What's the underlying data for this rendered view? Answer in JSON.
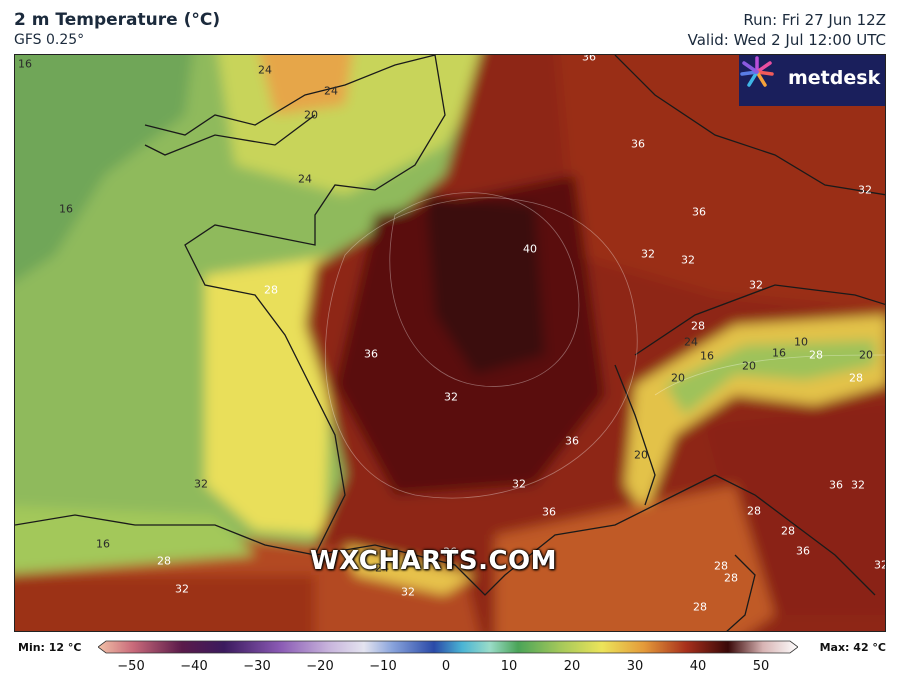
{
  "header": {
    "title": "2 m Temperature (°C)",
    "model": "GFS 0.25°",
    "run": "Run: Fri 27 Jun 12Z",
    "valid": "Valid: Wed 2 Jul 12:00 UTC"
  },
  "logo": {
    "text": "metdesk"
  },
  "watermark": "WXCHARTS.COM",
  "map_labels": [
    {
      "id": "l1",
      "text": "16"
    },
    {
      "id": "l2",
      "text": "24"
    },
    {
      "id": "l3",
      "text": "24"
    },
    {
      "id": "l4",
      "text": "20"
    },
    {
      "id": "l5",
      "text": "16"
    },
    {
      "id": "l6",
      "text": "24"
    },
    {
      "id": "l7",
      "text": "36"
    },
    {
      "id": "l8",
      "text": "36"
    },
    {
      "id": "l9",
      "text": "32"
    },
    {
      "id": "l10",
      "text": "36"
    },
    {
      "id": "l11",
      "text": "40"
    },
    {
      "id": "l12",
      "text": "32"
    },
    {
      "id": "l13",
      "text": "32"
    },
    {
      "id": "l14",
      "text": "28"
    },
    {
      "id": "l15",
      "text": "32"
    },
    {
      "id": "l16",
      "text": "28"
    },
    {
      "id": "l17",
      "text": "24"
    },
    {
      "id": "l18",
      "text": "16"
    },
    {
      "id": "l19",
      "text": "10"
    },
    {
      "id": "l20",
      "text": "28"
    },
    {
      "id": "l21",
      "text": "20"
    },
    {
      "id": "l22",
      "text": "16"
    },
    {
      "id": "l23",
      "text": "20"
    },
    {
      "id": "l24",
      "text": "28"
    },
    {
      "id": "l25",
      "text": "36"
    },
    {
      "id": "l26",
      "text": "32"
    },
    {
      "id": "l27",
      "text": "36"
    },
    {
      "id": "l28",
      "text": "20"
    },
    {
      "id": "l29",
      "text": "20"
    },
    {
      "id": "l30",
      "text": "32"
    },
    {
      "id": "l31",
      "text": "36"
    },
    {
      "id": "l32",
      "text": "32"
    },
    {
      "id": "l33",
      "text": "16"
    },
    {
      "id": "l34",
      "text": "28"
    },
    {
      "id": "l35",
      "text": "36"
    },
    {
      "id": "l36",
      "text": "28"
    },
    {
      "id": "l37",
      "text": "32"
    },
    {
      "id": "l38",
      "text": "24"
    },
    {
      "id": "l39",
      "text": "32"
    },
    {
      "id": "l40",
      "text": "36"
    },
    {
      "id": "l41",
      "text": "28"
    },
    {
      "id": "l42",
      "text": "28"
    },
    {
      "id": "l43",
      "text": "28"
    },
    {
      "id": "l44",
      "text": "32"
    },
    {
      "id": "l45",
      "text": "36"
    },
    {
      "id": "l46",
      "text": "32"
    },
    {
      "id": "l47",
      "text": "28"
    }
  ],
  "colorbar": {
    "min_label": "Min: 12 °C",
    "max_label": "Max: 42 °C",
    "ticks": [
      "−50",
      "−40",
      "−30",
      "−20",
      "−10",
      "0",
      "10",
      "20",
      "30",
      "40",
      "50"
    ]
  }
}
